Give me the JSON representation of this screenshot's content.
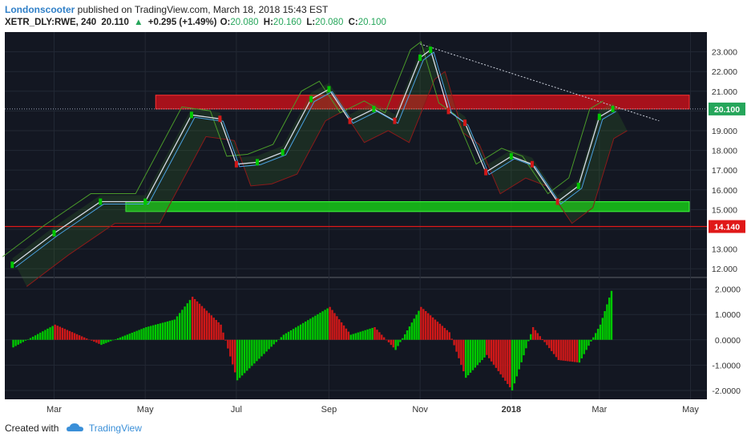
{
  "header": {
    "username": "Londonscooter",
    "published_text": "published on TradingView.com, March 18, 2018 15:43 EST",
    "symbol": "XETR_DLY:RWE, 240",
    "last": "20.110",
    "arrow": "▲",
    "change": "+0.295 (+1.49%)",
    "o_label": "O:",
    "o_value": "20.080",
    "h_label": "H:",
    "h_value": "20.160",
    "l_label": "L:",
    "l_value": "20.080",
    "c_label": "C:",
    "c_value": "20.100"
  },
  "footer": {
    "created_with": "Created with",
    "brand": "TradingView",
    "logo_icon": "tradingview-cloud-icon"
  },
  "colors": {
    "background": "#131722",
    "bull": "#00c800",
    "bear": "#d01818",
    "resistance_zone": "#c8101a",
    "support_zone": "#18c818",
    "grid": "#232834"
  },
  "chart_data": [
    {
      "type": "line",
      "name": "price",
      "x_tick_labels": [
        "Mar",
        "May",
        "Jul",
        "Sep",
        "Nov",
        "2018",
        "Mar",
        "May"
      ],
      "y_tick_labels": [
        "23.000",
        "22.000",
        "21.000",
        "20.000",
        "19.000",
        "18.000",
        "17.000",
        "16.000",
        "15.000",
        "14.000",
        "13.000",
        "12.000"
      ],
      "ylim": [
        11.6,
        24.0
      ],
      "x": [
        "2017-02-01",
        "2017-03-01",
        "2017-04-01",
        "2017-05-01",
        "2017-06-01",
        "2017-06-20",
        "2017-07-01",
        "2017-07-15",
        "2017-08-01",
        "2017-08-20",
        "2017-09-01",
        "2017-09-15",
        "2017-10-01",
        "2017-10-15",
        "2017-11-01",
        "2017-11-08",
        "2017-11-20",
        "2017-12-01",
        "2017-12-15",
        "2018-01-01",
        "2018-01-15",
        "2018-02-01",
        "2018-02-15",
        "2018-03-01",
        "2018-03-10"
      ],
      "y": [
        12.2,
        13.8,
        15.4,
        15.4,
        19.8,
        19.6,
        17.3,
        17.4,
        17.9,
        20.6,
        21.1,
        19.5,
        20.1,
        19.5,
        22.7,
        23.1,
        20.0,
        19.4,
        16.9,
        17.7,
        17.3,
        15.4,
        16.2,
        19.7,
        20.1
      ],
      "resistance_zone": [
        20.1,
        20.8
      ],
      "support_zone": [
        14.9,
        15.4
      ],
      "current_price_label": "20.100",
      "horizontal_line_label": "14.140",
      "horizontal_line_value": 14.14,
      "trendline": {
        "from": [
          "2017-11-01",
          23.4
        ],
        "to": [
          "2018-04-10",
          19.5
        ]
      },
      "grid": true
    },
    {
      "type": "bar",
      "name": "momentum",
      "y_tick_labels": [
        "2.0000",
        "1.0000",
        "0.0000",
        "-1.0000",
        "-2.0000"
      ],
      "ylim": [
        -2.35,
        2.4
      ],
      "x": [
        "2017-02-01",
        "2017-03-01",
        "2017-04-01",
        "2017-05-01",
        "2017-05-20",
        "2017-06-01",
        "2017-06-20",
        "2017-07-01",
        "2017-08-01",
        "2017-09-01",
        "2017-09-15",
        "2017-10-01",
        "2017-10-15",
        "2017-11-01",
        "2017-11-20",
        "2017-12-01",
        "2017-12-15",
        "2018-01-01",
        "2018-01-15",
        "2018-02-01",
        "2018-02-15",
        "2018-03-01",
        "2018-03-10"
      ],
      "y": [
        -0.3,
        0.6,
        -0.2,
        0.5,
        0.8,
        1.7,
        0.6,
        -1.6,
        0.2,
        1.3,
        0.2,
        0.5,
        -0.4,
        1.3,
        0.3,
        -1.5,
        -0.6,
        -2.0,
        0.5,
        -0.8,
        -0.9,
        0.6,
        2.2
      ]
    }
  ]
}
